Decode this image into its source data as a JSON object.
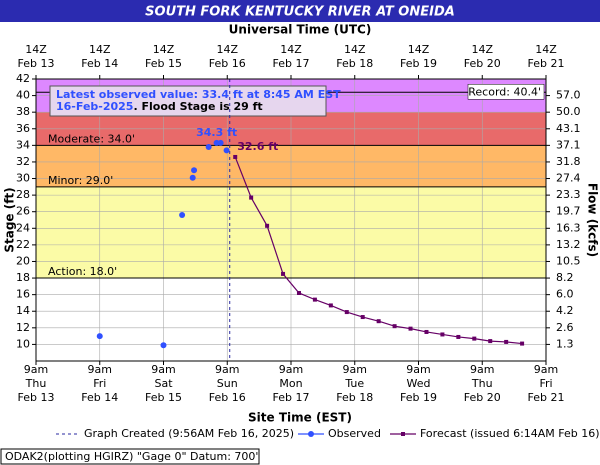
{
  "chart_data": {
    "type": "hydrograph",
    "title": "SOUTH FORK KENTUCKY RIVER AT ONEIDA",
    "top_axis_title": "Universal Time (UTC)",
    "xlabel": "Site Time (EST)",
    "ylabel": "Stage (ft)",
    "y2label": "Flow (kcfs)",
    "xlim": [
      "Feb 13 09:00",
      "Feb 21 09:00"
    ],
    "ylim": [
      8,
      42
    ],
    "yticks": [
      10,
      12,
      14,
      16,
      18,
      20,
      22,
      24,
      26,
      28,
      30,
      32,
      34,
      36,
      38,
      40,
      42
    ],
    "y2ticks": [
      {
        "value": 57,
        "label": "57.0"
      },
      {
        "value": 50,
        "label": "50.0"
      },
      {
        "value": 43.1,
        "label": "43.1"
      },
      {
        "value": 37.1,
        "label": "37.1"
      },
      {
        "value": 31.8,
        "label": "31.8"
      },
      {
        "value": 27.4,
        "label": "27.4"
      },
      {
        "value": 23.3,
        "label": "23.3"
      },
      {
        "value": 19.7,
        "label": "19.7"
      },
      {
        "value": 16.3,
        "label": "16.3"
      },
      {
        "value": 13.2,
        "label": "13.2"
      },
      {
        "value": 10.5,
        "label": "10.5"
      },
      {
        "value": 8.2,
        "label": "8.2"
      },
      {
        "value": 6,
        "label": "6.0"
      },
      {
        "value": 4.2,
        "label": "4.2"
      },
      {
        "value": 2.6,
        "label": "2.6"
      },
      {
        "value": 1.3,
        "label": "1.3"
      }
    ],
    "rating_stage": [
      40,
      38,
      36,
      34,
      32,
      30,
      28,
      26,
      24,
      22,
      20,
      18,
      16,
      14,
      12,
      10
    ],
    "xticks": [
      {
        "value": "Feb 13 09:00",
        "label": [
          "9am",
          "Thu",
          "Feb 13"
        ]
      },
      {
        "value": "Feb 14 09:00",
        "label": [
          "9am",
          "Fri",
          "Feb 14"
        ]
      },
      {
        "value": "Feb 15 09:00",
        "label": [
          "9am",
          "Sat",
          "Feb 15"
        ]
      },
      {
        "value": "Feb 16 09:00",
        "label": [
          "9am",
          "Sun",
          "Feb 16"
        ]
      },
      {
        "value": "Feb 17 09:00",
        "label": [
          "9am",
          "Mon",
          "Feb 17"
        ]
      },
      {
        "value": "Feb 18 09:00",
        "label": [
          "9am",
          "Tue",
          "Feb 18"
        ]
      },
      {
        "value": "Feb 19 09:00",
        "label": [
          "9am",
          "Wed",
          "Feb 19"
        ]
      },
      {
        "value": "Feb 20 09:00",
        "label": [
          "9am",
          "Thu",
          "Feb 20"
        ]
      },
      {
        "value": "Feb 21 09:00",
        "label": [
          "9am",
          "Fri",
          "Feb 21"
        ]
      }
    ],
    "x2ticks": [
      {
        "value": "Feb 13 09:00",
        "label": [
          "14Z",
          "Feb 13"
        ]
      },
      {
        "value": "Feb 14 09:00",
        "label": [
          "14Z",
          "Feb 14"
        ]
      },
      {
        "value": "Feb 15 09:00",
        "label": [
          "14Z",
          "Feb 15"
        ]
      },
      {
        "value": "Feb 16 09:00",
        "label": [
          "14Z",
          "Feb 16"
        ]
      },
      {
        "value": "Feb 17 09:00",
        "label": [
          "14Z",
          "Feb 17"
        ]
      },
      {
        "value": "Feb 18 09:00",
        "label": [
          "14Z",
          "Feb 18"
        ]
      },
      {
        "value": "Feb 19 09:00",
        "label": [
          "14Z",
          "Feb 19"
        ]
      },
      {
        "value": "Feb 20 09:00",
        "label": [
          "14Z",
          "Feb 20"
        ]
      },
      {
        "value": "Feb 21 09:00",
        "label": [
          "14Z",
          "Feb 21"
        ]
      }
    ],
    "grid": true,
    "bands": [
      {
        "lower": 38,
        "color": "#dd88ff"
      },
      {
        "lower": 34,
        "color": "#e86a6a"
      },
      {
        "lower": 29,
        "color": "#ffb866"
      },
      {
        "lower": 18,
        "color": "#fbfba6"
      }
    ],
    "flood_levels": [
      {
        "stage": 40.4,
        "label": "Record: 40.4'",
        "align": "right"
      },
      {
        "stage": 34,
        "label": "Moderate: 34.0'",
        "align": "left"
      },
      {
        "stage": 29,
        "label": "Minor: 29.0'",
        "align": "left"
      },
      {
        "stage": 18,
        "label": "Action: 18.0'",
        "align": "left"
      }
    ],
    "graph_created": {
      "x": "Feb 16 09:56",
      "label": "Graph Created (9:56AM Feb 16, 2025)"
    },
    "series": [
      {
        "name": "Observed",
        "color": "#3050ff",
        "x": [
          "Feb 14 09:00",
          "Feb 15 09:00",
          "Feb 15 16:00",
          "Feb 15 20:00",
          "Feb 15 20:30",
          "Feb 16 02:00",
          "Feb 16 05:00",
          "Feb 16 06:30",
          "Feb 16 08:45"
        ],
        "values": [
          11.0,
          9.9,
          25.6,
          30.1,
          31.0,
          33.8,
          34.3,
          34.3,
          33.4
        ],
        "value_labels": [
          null,
          null,
          null,
          null,
          null,
          null,
          "34.3 ft",
          null,
          null
        ],
        "line": false
      },
      {
        "name": "Forecast (issued 6:14AM Feb 16)",
        "color": "#660066",
        "x": [
          "Feb 16 12:00",
          "Feb 16 18:00",
          "Feb 17 00:00",
          "Feb 17 06:00",
          "Feb 17 12:00",
          "Feb 17 18:00",
          "Feb 18 00:00",
          "Feb 18 06:00",
          "Feb 18 12:00",
          "Feb 18 18:00",
          "Feb 19 00:00",
          "Feb 19 06:00",
          "Feb 19 12:00",
          "Feb 19 18:00",
          "Feb 20 00:00",
          "Feb 20 06:00",
          "Feb 20 12:00",
          "Feb 20 18:00",
          "Feb 21 00:00"
        ],
        "values": [
          32.6,
          27.7,
          24.3,
          18.5,
          16.2,
          15.4,
          14.7,
          13.9,
          13.3,
          12.8,
          12.2,
          11.9,
          11.5,
          11.2,
          10.9,
          10.7,
          10.4,
          10.3,
          10.1
        ],
        "value_labels": [
          "32.6 ft",
          null,
          null,
          null,
          null,
          null,
          null,
          null,
          null,
          null,
          null,
          null,
          null,
          null,
          null,
          null,
          null,
          null,
          null
        ],
        "line": true
      }
    ],
    "latest_note": [
      "Latest observed value: 33.4 ft at 8:45 AM EST",
      "16-Feb-2025",
      ". Flood Stage is 29 ft"
    ],
    "footer": "ODAK2(plotting HGIRZ) \"Gage 0\" Datum: 700'"
  }
}
